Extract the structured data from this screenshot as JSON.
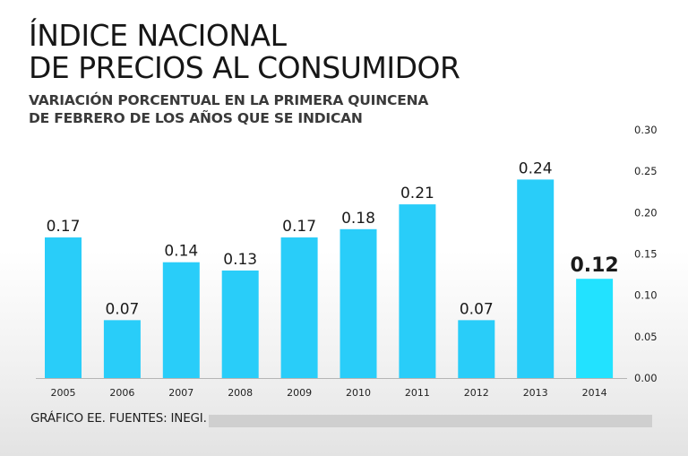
{
  "title_line1": "ÍNDICE NACIONAL",
  "title_line2": "DE PRECIOS AL CONSUMIDOR",
  "subtitle_line1": "VARIACIÓN PORCENTUAL EN LA PRIMERA QUINCENA",
  "subtitle_line2": "DE FEBRERO DE LOS AÑOS QUE SE INDICAN",
  "source": "GRÁFICO EE. FUENTES: INEGI.",
  "colors": {
    "bar": "#29cdf9",
    "highlight": "#22e2ff"
  },
  "chart_data": {
    "type": "bar",
    "title": "ÍNDICE NACIONAL DE PRECIOS AL CONSUMIDOR",
    "xlabel": "",
    "ylabel": "",
    "categories": [
      "2005",
      "2006",
      "2007",
      "2008",
      "2009",
      "2010",
      "2011",
      "2012",
      "2013",
      "2014"
    ],
    "values": [
      0.17,
      0.07,
      0.14,
      0.13,
      0.17,
      0.18,
      0.21,
      0.07,
      0.24,
      0.12
    ],
    "labels": [
      "0.17",
      "0.07",
      "0.14",
      "0.13",
      "0.17",
      "0.18",
      "0.21",
      "0.07",
      "0.24",
      "0.12"
    ],
    "highlight_index": 9,
    "ylim": [
      0,
      0.3
    ],
    "yticks": [
      "0.00",
      "0.05",
      "0.10",
      "0.15",
      "0.20",
      "0.25",
      "0.30"
    ],
    "grid": false,
    "y_axis_side": "right"
  }
}
